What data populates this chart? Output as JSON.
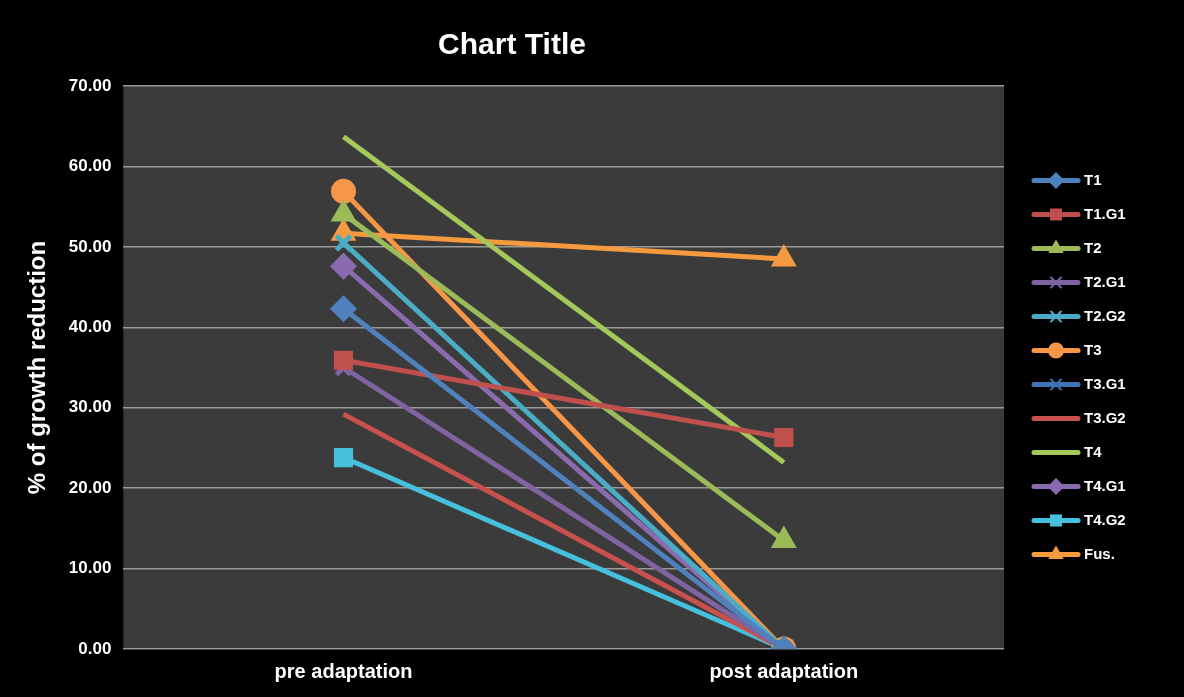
{
  "chart_data": {
    "type": "line",
    "title": "Chart Title",
    "ylabel": "% of growth reduction",
    "categories": [
      "pre adaptation",
      "post adaptation"
    ],
    "ylim": [
      0,
      70
    ],
    "yticks": [
      {
        "value": 0,
        "label": "0.00"
      },
      {
        "value": 10,
        "label": "10.00"
      },
      {
        "value": 20,
        "label": "20.00"
      },
      {
        "value": 30,
        "label": "30.00"
      },
      {
        "value": 40,
        "label": "40.00"
      },
      {
        "value": 50,
        "label": "50.00"
      },
      {
        "value": 60,
        "label": "60.00"
      },
      {
        "value": 70,
        "label": "70.00"
      }
    ],
    "grid": "y",
    "legend": "right",
    "series": [
      {
        "name": "T1",
        "color": "#4f81bd",
        "marker": "diamond",
        "values": [
          42.3,
          0
        ]
      },
      {
        "name": "T1.G1",
        "color": "#c0504d",
        "marker": "square",
        "values": [
          35.9,
          26.3
        ]
      },
      {
        "name": "T2",
        "color": "#9bbb59",
        "marker": "triangle",
        "values": [
          54.1,
          13.5
        ]
      },
      {
        "name": "T2.G1",
        "color": "#8064a2",
        "marker": "cross",
        "values": [
          35,
          0
        ]
      },
      {
        "name": "T2.G2",
        "color": "#4bacc6",
        "marker": "cross",
        "values": [
          50.5,
          0
        ]
      },
      {
        "name": "T3",
        "color": "#f79646",
        "marker": "circle",
        "values": [
          56.9,
          0
        ]
      },
      {
        "name": "T3.G1",
        "color": "#3e73b8",
        "marker": "cross",
        "values": [
          null,
          null
        ]
      },
      {
        "name": "T3.G2",
        "color": "#c8504d",
        "marker": "none",
        "values": [
          29.2,
          0
        ]
      },
      {
        "name": "T4",
        "color": "#a4c95a",
        "marker": "none",
        "values": [
          63.7,
          23.2
        ]
      },
      {
        "name": "T4.G1",
        "color": "#8a6bb0",
        "marker": "diamond",
        "values": [
          47.6,
          0
        ]
      },
      {
        "name": "T4.G2",
        "color": "#45c1dd",
        "marker": "square",
        "values": [
          23.8,
          0
        ]
      },
      {
        "name": "Fus.",
        "color": "#f59a3e",
        "marker": "triangle",
        "values": [
          51.7,
          48.5
        ]
      }
    ]
  }
}
